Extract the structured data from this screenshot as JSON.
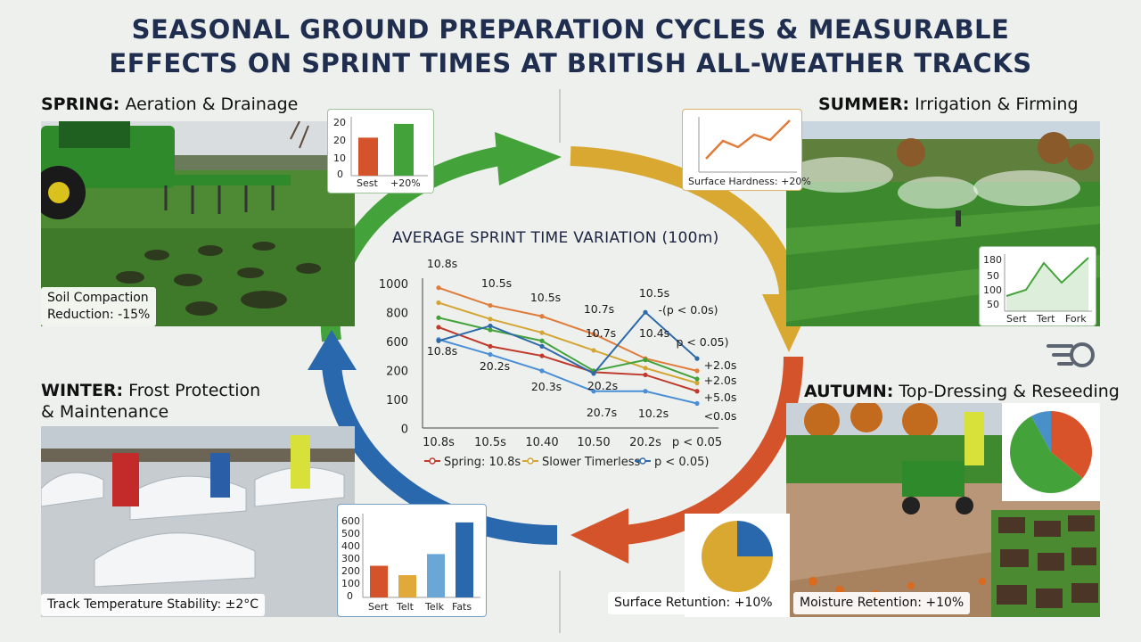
{
  "title_line1": "SEASONAL GROUND PREPARATION CYCLES & MEASURABLE",
  "title_line2": "EFFECTS ON SPRINT TIMES AT BRITISH ALL-WEATHER TRACKS",
  "spring": {
    "label_bold": "SPRING:",
    "label_rest": " Aeration & Drainage",
    "caption_line1": "Soil Compaction",
    "caption_line2": "Reduction: -15%",
    "mini": {
      "ticks": [
        "20",
        "20",
        "10",
        "0"
      ],
      "labels": [
        "Sest",
        "+20%"
      ],
      "values": [
        22,
        30
      ],
      "colors": [
        "#d4532a",
        "#43a33a"
      ]
    }
  },
  "summer": {
    "label_bold": "SUMMER:",
    "label_rest": " Irrigation & Firming",
    "mini_top_caption": "Surface Hardness: +20%",
    "mini_bottom": {
      "ticks": [
        "180",
        "50",
        "100",
        "50"
      ],
      "labels": [
        "Sert",
        "Tert",
        "Fork"
      ]
    }
  },
  "autumn": {
    "label_bold": "AUTUMN:",
    "label_rest": " Top-Dressing & Reseeding",
    "caption": "Moisture Retention: +10%",
    "pie": {
      "slices": [
        0.36,
        0.56,
        0.08
      ],
      "colors": [
        "#d9532a",
        "#43a33a",
        "#4a90c8"
      ]
    }
  },
  "winter": {
    "label_bold": "WINTER:",
    "label_rest": " Frost Protection",
    "label_line2": "& Maintenance",
    "caption": "Track Temperature Stability: ±2°C",
    "mini": {
      "ticks": [
        "600",
        "500",
        "400",
        "300",
        "200",
        "100",
        "0"
      ],
      "labels": [
        "Sert",
        "Telt",
        "Telk",
        "Fats"
      ],
      "values": [
        270,
        190,
        370,
        640
      ],
      "colors": [
        "#d4532a",
        "#e1a93a",
        "#6aa7d6",
        "#2a68ae"
      ],
      "max": 700
    }
  },
  "surface_retention": {
    "caption": "Surface Retuntion: +10%",
    "pie": {
      "slices": [
        0.25,
        0.75
      ],
      "colors": [
        "#2a68ae",
        "#d9a830"
      ]
    }
  },
  "chart_data": {
    "type": "line",
    "title": "AVERAGE SPRINT TIME VARIATION (100m)",
    "categories": [
      "10.8s",
      "10.5s",
      "10.40",
      "10.50",
      "20.2s",
      "p < 0.05"
    ],
    "yticks": [
      "1000",
      "800",
      "600",
      "200",
      "100",
      "0"
    ],
    "legend": [
      "Spring: 10.8s",
      "Slower Timerless",
      "p < 0.05)"
    ],
    "series": [
      {
        "color": "#c0392b",
        "values": [
          740,
          600,
          530,
          410,
          390,
          270
        ]
      },
      {
        "color": "#d4a533",
        "values": [
          920,
          800,
          700,
          570,
          440,
          330
        ]
      },
      {
        "color": "#e07b39",
        "values": [
          1030,
          900,
          820,
          690,
          510,
          420
        ]
      },
      {
        "color": "#43a33a",
        "values": [
          810,
          720,
          640,
          420,
          500,
          360
        ]
      },
      {
        "color": "#4a8fd6",
        "values": [
          650,
          540,
          420,
          270,
          270,
          180
        ]
      },
      {
        "color": "#2e6aa8",
        "values": [
          640,
          750,
          600,
          400,
          850,
          510
        ]
      }
    ],
    "annotations": [
      "10.8s",
      "10.5s",
      "10.5s",
      "10.7s",
      "10.5s",
      "-(p < 0.0s)",
      "10.7s",
      "10.4s",
      "p < 0.05)",
      "10.8s",
      "20.2s",
      "20.3s",
      "20.2s",
      "20.7s",
      "10.2s",
      "+2.0s",
      "+2.0s",
      "+5.0s",
      "<0.0s"
    ]
  },
  "colors": {
    "spring": "#43a33a",
    "summer": "#d9a830",
    "autumn": "#d4532a",
    "winter": "#2a68ae",
    "title": "#1f2d4e"
  }
}
